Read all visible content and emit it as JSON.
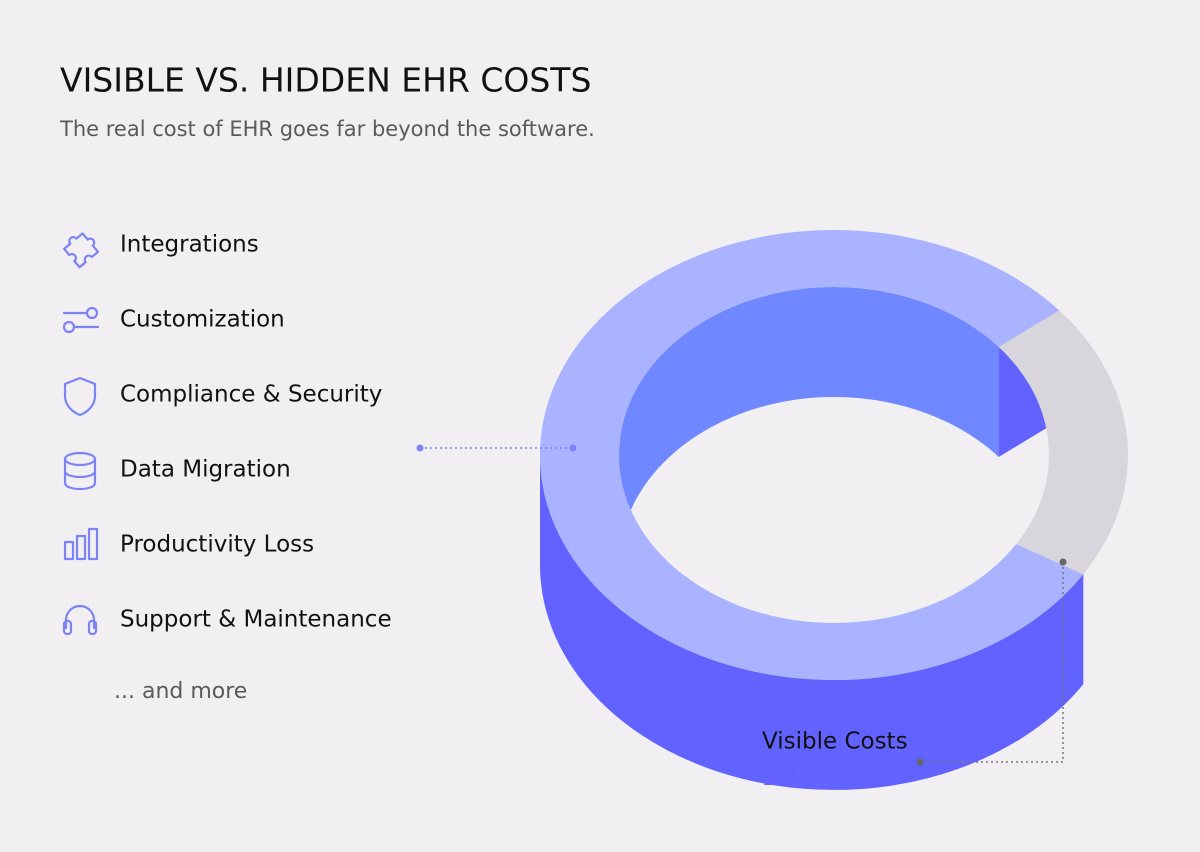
{
  "header": {
    "title": "VISIBLE VS. HIDDEN EHR COSTS",
    "subtitle": "The real cost of EHR goes far beyond the software."
  },
  "list": {
    "items": [
      "Integrations",
      "Customization",
      "Compliance & Security",
      "Data Migration",
      "Productivity Loss",
      "Support & Maintenance"
    ],
    "more": "... and more"
  },
  "chart_data": {
    "type": "donut3d",
    "categories": [
      null,
      "Visible Costs"
    ],
    "values": [
      80,
      20
    ],
    "value_labels": [
      null,
      "20%"
    ],
    "colors": [
      "#aab3ff",
      "#d8d6dc"
    ]
  }
}
